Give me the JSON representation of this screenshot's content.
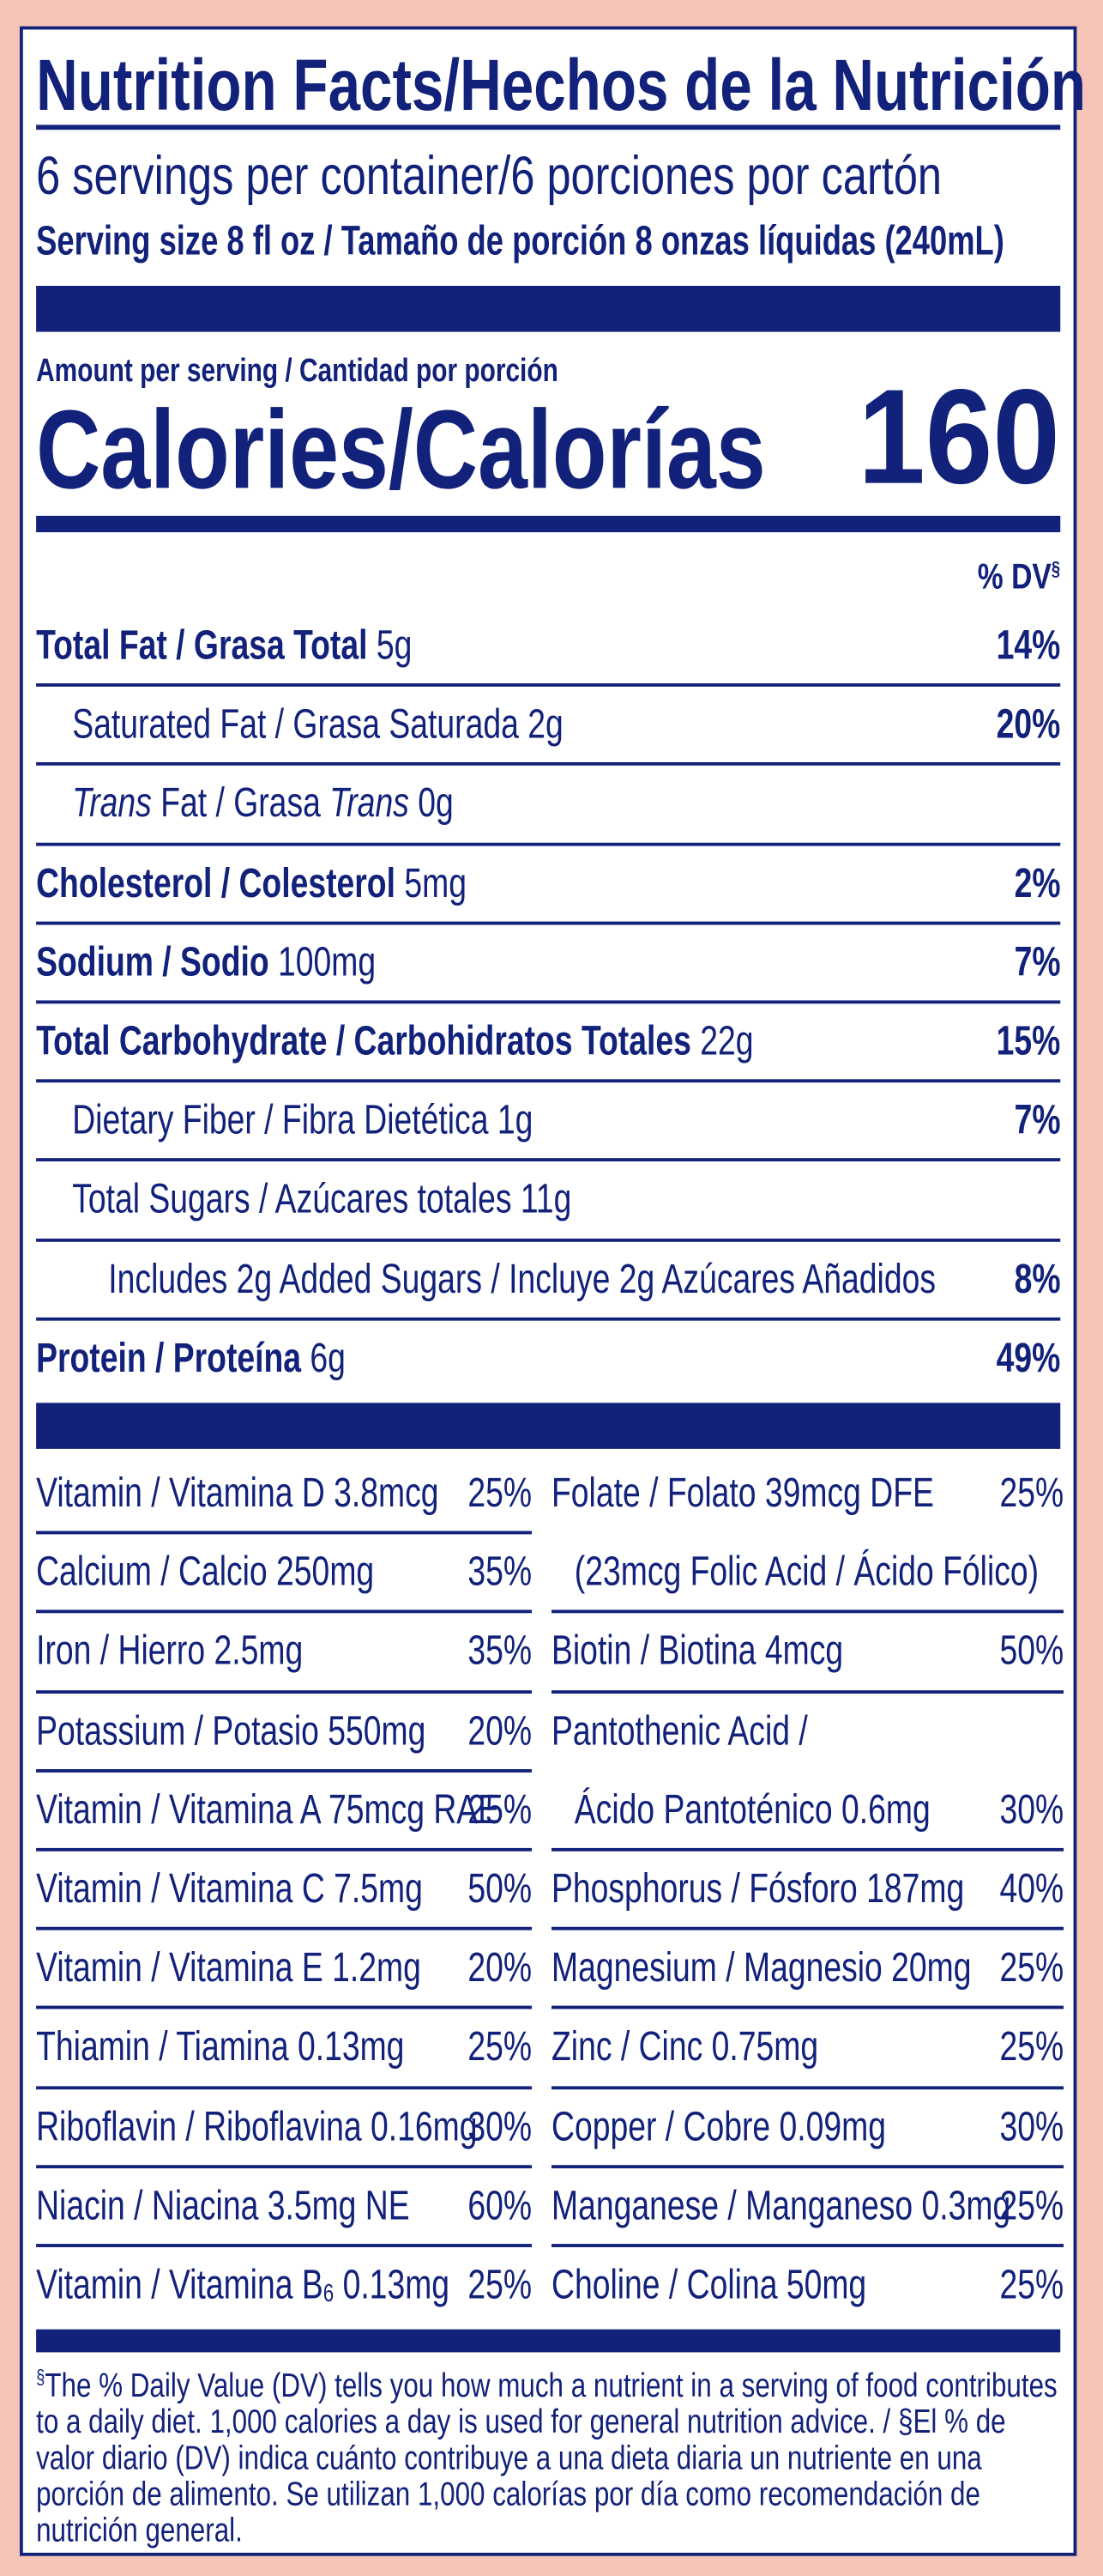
{
  "header": {
    "title": "Nutrition Facts/Hechos de la Nutrición",
    "servings": "6 servings per container/6 porciones por cartón",
    "serving_size": "Serving size 8 fl oz / Tamaño de porción 8 onzas líquidas (240mL)"
  },
  "calories": {
    "amount_label": "Amount per serving / Cantidad por porción",
    "label": "Calories/Calorías",
    "value": "160"
  },
  "dv_header": {
    "text": "% DV",
    "mark": "§"
  },
  "nutrients": [
    {
      "label": [
        {
          "text": "Total Fat / Grasa Total",
          "bold": true
        },
        {
          "text": " 5g"
        }
      ],
      "dv": "14%",
      "indent": 0
    },
    {
      "label": [
        {
          "text": "Saturated Fat / Grasa Saturada 2g"
        }
      ],
      "dv": "20%",
      "indent": 1
    },
    {
      "label": [
        {
          "text": "Trans",
          "italic": true
        },
        {
          "text": " Fat / Grasa "
        },
        {
          "text": "Trans",
          "italic": true
        },
        {
          "text": " 0g"
        }
      ],
      "indent": 1
    },
    {
      "label": [
        {
          "text": "Cholesterol / Colesterol",
          "bold": true
        },
        {
          "text": " 5mg"
        }
      ],
      "dv": "2%",
      "indent": 0
    },
    {
      "label": [
        {
          "text": "Sodium / Sodio",
          "bold": true
        },
        {
          "text": " 100mg"
        }
      ],
      "dv": "7%",
      "indent": 0
    },
    {
      "label": [
        {
          "text": "Total Carbohydrate / Carbohidratos Totales",
          "bold": true
        },
        {
          "text": " 22g"
        }
      ],
      "dv": "15%",
      "indent": 0
    },
    {
      "label": [
        {
          "text": "Dietary Fiber / Fibra Dietética 1g"
        }
      ],
      "dv": "7%",
      "indent": 1
    },
    {
      "label": [
        {
          "text": "Total Sugars / Azúcares totales 11g"
        }
      ],
      "indent": 1
    },
    {
      "label": [
        {
          "text": "Includes 2g Added Sugars / Incluye 2g Azúcares Añadidos"
        }
      ],
      "dv": "8%",
      "indent": 2
    },
    {
      "label": [
        {
          "text": "Protein / Proteína",
          "bold": true
        },
        {
          "text": " 6g"
        }
      ],
      "dv": "49%",
      "indent": 0
    }
  ],
  "vitamins_left": [
    {
      "label": [
        {
          "text": "Vitamin / Vitamina D 3.8mcg"
        }
      ],
      "dv": "25%"
    },
    {
      "label": [
        {
          "text": "Calcium / Calcio 250mg"
        }
      ],
      "dv": "35%"
    },
    {
      "label": [
        {
          "text": "Iron / Hierro 2.5mg"
        }
      ],
      "dv": "35%"
    },
    {
      "label": [
        {
          "text": "Potassium / Potasio 550mg"
        }
      ],
      "dv": "20%"
    },
    {
      "label": [
        {
          "text": "Vitamin / Vitamina A 75mcg RAE"
        }
      ],
      "dv": "25%"
    },
    {
      "label": [
        {
          "text": "Vitamin / Vitamina C 7.5mg"
        }
      ],
      "dv": "50%"
    },
    {
      "label": [
        {
          "text": "Vitamin / Vitamina E 1.2mg"
        }
      ],
      "dv": "20%"
    },
    {
      "label": [
        {
          "text": "Thiamin / Tiamina 0.13mg"
        }
      ],
      "dv": "25%"
    },
    {
      "label": [
        {
          "text": "Riboflavin / Riboflavina 0.16mg"
        }
      ],
      "dv": "30%"
    },
    {
      "label": [
        {
          "text": "Niacin / Niacina 3.5mg NE"
        }
      ],
      "dv": "60%"
    },
    {
      "label": [
        {
          "text": "Vitamin / Vitamina B"
        },
        {
          "text": "6",
          "sub": true
        },
        {
          "text": " 0.13mg"
        }
      ],
      "dv": "25%"
    }
  ],
  "vitamins_right": [
    {
      "label": [
        {
          "text": "Folate / Folato 39mcg DFE"
        }
      ],
      "dv": "25%"
    },
    {
      "label": [
        {
          "text": "(23mcg Folic Acid / Ácido Fólico)"
        }
      ],
      "continued": true
    },
    {
      "label": [
        {
          "text": "Biotin / Biotina 4mcg"
        }
      ],
      "dv": "50%"
    },
    {
      "label": [
        {
          "text": "Pantothenic Acid /"
        }
      ]
    },
    {
      "label": [
        {
          "text": "Ácido Pantoténico 0.6mg"
        }
      ],
      "dv": "30%",
      "continued": true
    },
    {
      "label": [
        {
          "text": "Phosphorus / Fósforo 187mg"
        }
      ],
      "dv": "40%"
    },
    {
      "label": [
        {
          "text": "Magnesium / Magnesio 20mg"
        }
      ],
      "dv": "25%"
    },
    {
      "label": [
        {
          "text": "Zinc / Cinc 0.75mg"
        }
      ],
      "dv": "25%"
    },
    {
      "label": [
        {
          "text": "Copper / Cobre 0.09mg"
        }
      ],
      "dv": "30%"
    },
    {
      "label": [
        {
          "text": "Manganese / Manganeso 0.3mg"
        }
      ],
      "dv": "25%"
    },
    {
      "label": [
        {
          "text": "Choline / Colina 50mg"
        }
      ],
      "dv": "25%"
    }
  ],
  "footnote": {
    "mark": "§",
    "text": "The % Daily Value (DV) tells you how much a nutrient in a serving of food contributes to a daily diet. 1,000 calories a day is used for general nutrition advice. / §El % de valor diario (DV) indica cuánto contribuye a una dieta diaria un nutriente en una porción de alimento. Se utilizan 1,000 calorías por día como recomendación de nutrición general."
  }
}
